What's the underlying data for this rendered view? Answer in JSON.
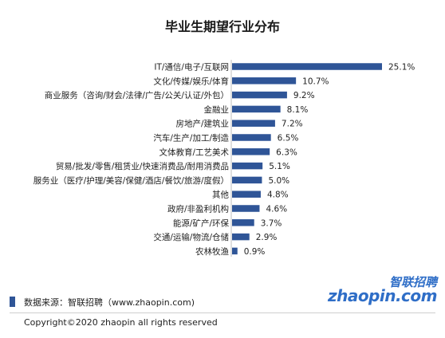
{
  "chart_data": {
    "type": "bar",
    "orientation": "horizontal",
    "title": "毕业生期望行业分布",
    "categories": [
      "IT/通信/电子/互联网",
      "文化/传媒/娱乐/体育",
      "商业服务（咨询/财会/法律/广告/公关/认证/外包）",
      "金融业",
      "房地产/建筑业",
      "汽车/生产/加工/制造",
      "文体教育/工艺美术",
      "贸易/批发/零售/租赁业/快速消费品/耐用消费品",
      "服务业（医疗/护理/美容/保健/酒店/餐饮/旅游/度假）",
      "其他",
      "政府/非盈利机构",
      "能源/矿产/环保",
      "交通/运输/物流/仓储",
      "农林牧渔"
    ],
    "values": [
      25.1,
      10.7,
      9.2,
      8.1,
      7.2,
      6.5,
      6.3,
      5.1,
      5.0,
      4.8,
      4.6,
      3.7,
      2.9,
      0.9
    ],
    "value_labels": [
      "25.1%",
      "10.7%",
      "9.2%",
      "8.1%",
      "7.2%",
      "6.5%",
      "6.3%",
      "5.1%",
      "5.0%",
      "4.8%",
      "4.6%",
      "3.7%",
      "2.9%",
      "0.9%"
    ],
    "xlim": [
      0,
      25.1
    ],
    "grid": false,
    "bar_color": "#2f5597"
  },
  "footer": {
    "source": "数据来源：智联招聘（www.zhaopin.com)",
    "copyright": "Copyright©2020 zhaopin all rights reserved"
  },
  "logo": {
    "cn": "智联招聘",
    "en": "zhaopin.com"
  }
}
